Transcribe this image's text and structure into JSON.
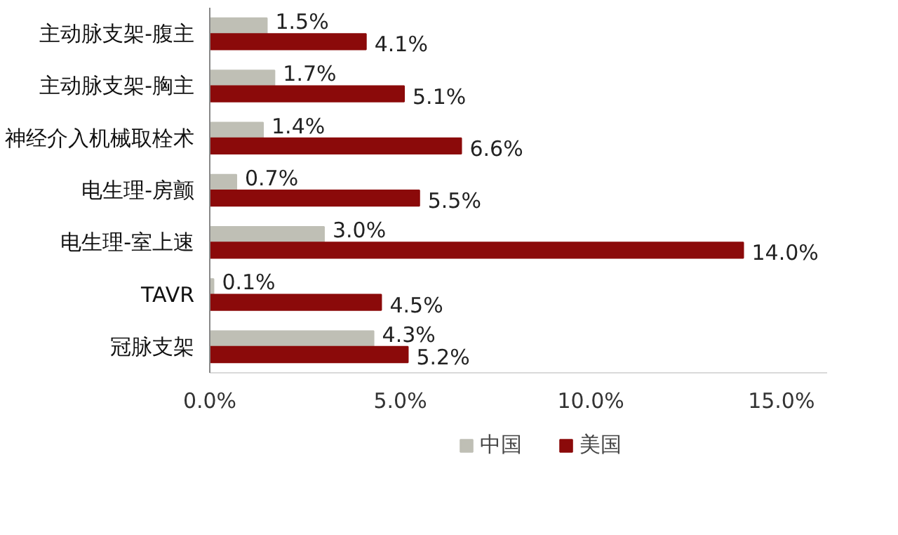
{
  "chart_data": {
    "type": "bar",
    "orientation": "horizontal",
    "categories": [
      "主动脉支架-腹主",
      "主动脉支架-胸主",
      "神经介入机械取栓术",
      "电生理-房颤",
      "电生理-室上速",
      "TAVR",
      "冠脉支架"
    ],
    "series": [
      {
        "name": "中国",
        "color": "#bfbfb5",
        "values": [
          1.5,
          1.7,
          1.4,
          0.7,
          3.0,
          0.1,
          4.3
        ],
        "value_labels": [
          "1.5%",
          "1.7%",
          "1.4%",
          "0.7%",
          "3.0%",
          "0.1%",
          "4.3%"
        ]
      },
      {
        "name": "美国",
        "color": "#8b0a0a",
        "values": [
          4.1,
          5.1,
          6.6,
          5.5,
          14.0,
          4.5,
          5.2
        ],
        "value_labels": [
          "4.1%",
          "5.1%",
          "6.6%",
          "5.5%",
          "14.0%",
          "4.5%",
          "5.2%"
        ]
      }
    ],
    "xlim": [
      0,
      16.2
    ],
    "xticks": [
      {
        "value": 0,
        "label": "0.0%"
      },
      {
        "value": 5,
        "label": "5.0%"
      },
      {
        "value": 10,
        "label": "10.0%"
      },
      {
        "value": 15,
        "label": "15.0%"
      }
    ],
    "grid": false,
    "legend": "bottom"
  }
}
